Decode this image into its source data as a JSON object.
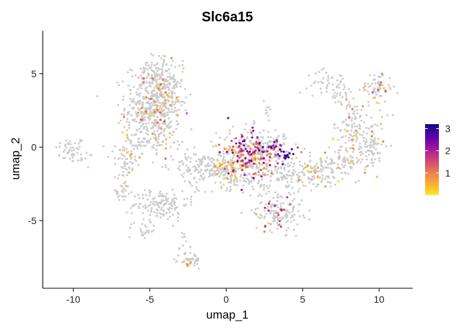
{
  "chart_data": {
    "type": "scatter",
    "title": "Slc6a15",
    "xlabel": "umap_1",
    "ylabel": "umap_2",
    "xlim": [
      -12,
      12.2
    ],
    "ylim": [
      -9.6,
      7.9
    ],
    "x_ticks": [
      -10,
      -5,
      0,
      5,
      10
    ],
    "y_ticks": [
      -5,
      0,
      5
    ],
    "x_tick_labels": [
      "-10",
      "-5",
      "0",
      "5",
      "10"
    ],
    "y_tick_labels": [
      "-5",
      "0",
      "5"
    ],
    "grid": false,
    "background_point_color": "#CCCCCC",
    "colorscale": {
      "name": "plasma (reversed)",
      "min": 0,
      "max": 3.2,
      "ticks": [
        1,
        2,
        3
      ],
      "tick_labels": [
        "1",
        "2",
        "3"
      ],
      "colors": [
        "#FFE92A",
        "#FDB32F",
        "#F48849",
        "#DB5C68",
        "#B93289",
        "#8B0AA5",
        "#5402A3",
        "#0D0887"
      ]
    },
    "legend_position": "right",
    "clusters": [
      {
        "cx": -10.2,
        "cy": -0.2,
        "sx": 0.5,
        "sy": 0.45,
        "n": 45
      },
      {
        "cx": -9.1,
        "cy": -0.9,
        "sx": 0.3,
        "sy": 0.3,
        "n": 10
      },
      {
        "cx": -4.8,
        "cy": 2.8,
        "sx": 0.9,
        "sy": 1.4,
        "n": 480
      },
      {
        "cx": -4.5,
        "cy": 5.2,
        "sx": 0.55,
        "sy": 0.5,
        "n": 70
      },
      {
        "cx": -3.5,
        "cy": 3.7,
        "sx": 0.4,
        "sy": 0.6,
        "n": 50
      },
      {
        "cx": -6.6,
        "cy": -1.3,
        "sx": 0.35,
        "sy": 0.9,
        "n": 55
      },
      {
        "cx": -6.9,
        "cy": -3.1,
        "sx": 0.3,
        "sy": 0.3,
        "n": 20
      },
      {
        "cx": -5.0,
        "cy": 0.3,
        "sx": 1.3,
        "sy": 0.5,
        "n": 60
      },
      {
        "cx": -4.3,
        "cy": -3.9,
        "sx": 0.9,
        "sy": 0.55,
        "n": 140
      },
      {
        "cx": -5.4,
        "cy": -5.5,
        "sx": 0.5,
        "sy": 0.4,
        "n": 25
      },
      {
        "cx": -2.8,
        "cy": -6.7,
        "sx": 0.2,
        "sy": 0.5,
        "n": 12
      },
      {
        "cx": -2.3,
        "cy": -7.7,
        "sx": 0.35,
        "sy": 0.3,
        "n": 35
      },
      {
        "cx": -1.5,
        "cy": -1.3,
        "sx": 1.0,
        "sy": 0.4,
        "n": 110
      },
      {
        "cx": -2.0,
        "cy": -2.6,
        "sx": 0.5,
        "sy": 0.4,
        "n": 18
      },
      {
        "cx": 0.1,
        "cy": -1.6,
        "sx": 0.5,
        "sy": 0.6,
        "n": 90
      },
      {
        "cx": 1.6,
        "cy": -0.5,
        "sx": 1.1,
        "sy": 0.9,
        "n": 220
      },
      {
        "cx": 2.8,
        "cy": 0.1,
        "sx": 0.7,
        "sy": 0.4,
        "n": 60
      },
      {
        "cx": 3.9,
        "cy": -0.9,
        "sx": 0.3,
        "sy": 0.5,
        "n": 25
      },
      {
        "cx": 2.6,
        "cy": 2.6,
        "sx": 0.1,
        "sy": 0.4,
        "n": 8
      },
      {
        "cx": 3.0,
        "cy": -2.1,
        "sx": 1.2,
        "sy": 0.45,
        "n": 80
      },
      {
        "cx": 3.4,
        "cy": -4.3,
        "sx": 0.8,
        "sy": 0.7,
        "n": 140
      },
      {
        "cx": 5.4,
        "cy": -1.9,
        "sx": 1.0,
        "sy": 0.45,
        "n": 90
      },
      {
        "cx": 7.3,
        "cy": -1.2,
        "sx": 0.9,
        "sy": 0.45,
        "n": 80
      },
      {
        "cx": 8.6,
        "cy": 0.9,
        "sx": 0.8,
        "sy": 1.1,
        "n": 150
      },
      {
        "cx": 9.4,
        "cy": -0.2,
        "sx": 0.5,
        "sy": 0.5,
        "n": 40
      },
      {
        "cx": 6.7,
        "cy": 4.4,
        "sx": 0.7,
        "sy": 0.4,
        "n": 45
      },
      {
        "cx": 7.8,
        "cy": 3.3,
        "sx": 0.5,
        "sy": 0.4,
        "n": 25
      },
      {
        "cx": 9.9,
        "cy": 4.1,
        "sx": 0.5,
        "sy": 0.5,
        "n": 60
      }
    ],
    "expressing_regions": [
      {
        "cx": 1.5,
        "cy": -0.5,
        "sx": 0.9,
        "sy": 0.8,
        "n": 150,
        "vmin": 0.2,
        "vmax": 2.6
      },
      {
        "cx": 3.1,
        "cy": 0.1,
        "sx": 0.5,
        "sy": 0.35,
        "n": 20,
        "vmin": 1.6,
        "vmax": 3.0
      },
      {
        "cx": 3.8,
        "cy": -0.7,
        "sx": 0.25,
        "sy": 0.3,
        "n": 12,
        "vmin": 2.6,
        "vmax": 3.1
      },
      {
        "cx": 0.0,
        "cy": -1.4,
        "sx": 0.4,
        "sy": 0.5,
        "n": 25,
        "vmin": 0.1,
        "vmax": 0.8
      },
      {
        "cx": -4.5,
        "cy": 3.0,
        "sx": 0.9,
        "sy": 1.5,
        "n": 50,
        "vmin": 0.1,
        "vmax": 1.6
      },
      {
        "cx": 3.2,
        "cy": -4.5,
        "sx": 0.5,
        "sy": 0.5,
        "n": 20,
        "vmin": 0.4,
        "vmax": 2.2
      },
      {
        "cx": 6.2,
        "cy": -1.6,
        "sx": 1.6,
        "sy": 0.6,
        "n": 15,
        "vmin": 0.1,
        "vmax": 1.0
      },
      {
        "cx": 8.7,
        "cy": 0.9,
        "sx": 0.9,
        "sy": 1.2,
        "n": 20,
        "vmin": 0.1,
        "vmax": 1.4
      },
      {
        "cx": 9.8,
        "cy": 3.9,
        "sx": 0.5,
        "sy": 0.5,
        "n": 10,
        "vmin": 0.1,
        "vmax": 1.5
      },
      {
        "cx": -6.5,
        "cy": -0.5,
        "sx": 0.5,
        "sy": 1.3,
        "n": 10,
        "vmin": 0.1,
        "vmax": 0.6
      },
      {
        "cx": -2.6,
        "cy": -7.7,
        "sx": 0.3,
        "sy": 0.3,
        "n": 5,
        "vmin": 0.2,
        "vmax": 0.9
      }
    ]
  }
}
